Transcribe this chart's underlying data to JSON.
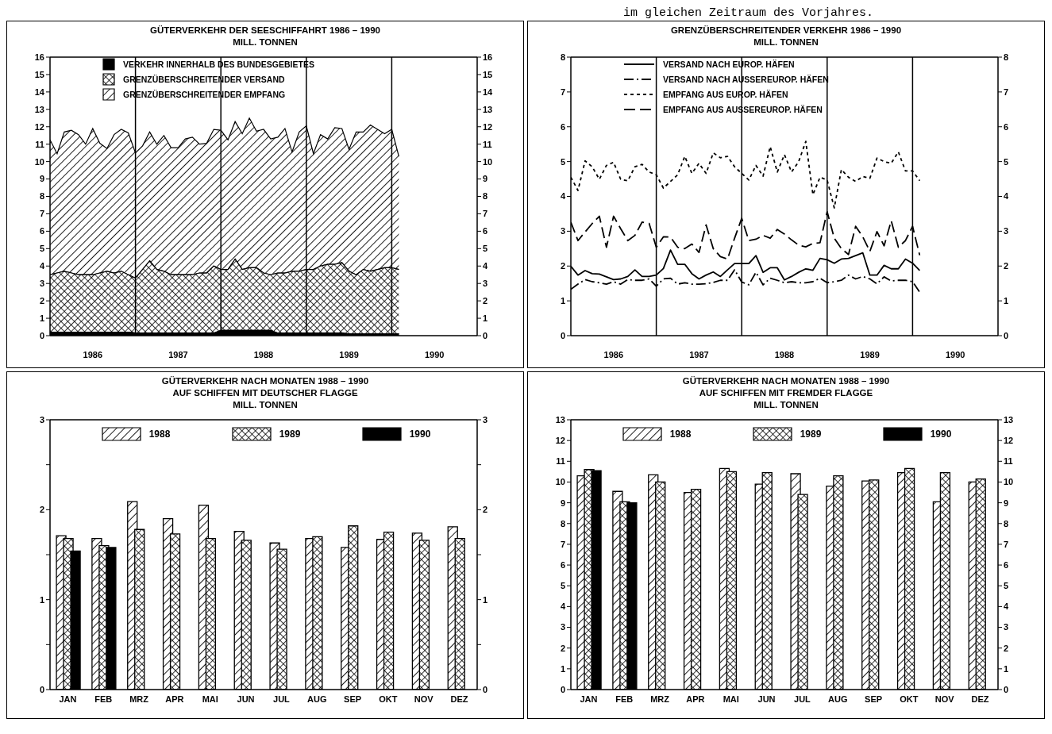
{
  "chart_data": [
    {
      "type": "area",
      "stacked": true,
      "title": "GÜTERVERKEHR DER SEESCHIFFAHRT 1986 – 1990",
      "subtitle": "MILL. TONNEN",
      "x": [
        "1986-01",
        "1986-02",
        "1986-03",
        "1986-04",
        "1986-05",
        "1986-06",
        "1986-07",
        "1986-08",
        "1986-09",
        "1986-10",
        "1986-11",
        "1986-12",
        "1987-01",
        "1987-02",
        "1987-03",
        "1987-04",
        "1987-05",
        "1987-06",
        "1987-07",
        "1987-08",
        "1987-09",
        "1987-10",
        "1987-11",
        "1987-12",
        "1988-01",
        "1988-02",
        "1988-03",
        "1988-04",
        "1988-05",
        "1988-06",
        "1988-07",
        "1988-08",
        "1988-09",
        "1988-10",
        "1988-11",
        "1988-12",
        "1989-01",
        "1989-02",
        "1989-03",
        "1989-04",
        "1989-05",
        "1989-06",
        "1989-07",
        "1989-08",
        "1989-09",
        "1989-10",
        "1989-11",
        "1989-12",
        "1990-01",
        "1990-02"
      ],
      "series": [
        {
          "name": "VERKEHR INNERHALB DES BUNDESGEBIETES",
          "color": "#000000",
          "values": [
            0.2,
            0.2,
            0.2,
            0.2,
            0.2,
            0.2,
            0.2,
            0.2,
            0.2,
            0.2,
            0.2,
            0.2,
            0.15,
            0.15,
            0.15,
            0.15,
            0.15,
            0.15,
            0.15,
            0.15,
            0.15,
            0.15,
            0.15,
            0.15,
            0.3,
            0.3,
            0.3,
            0.3,
            0.3,
            0.3,
            0.3,
            0.3,
            0.15,
            0.15,
            0.15,
            0.15,
            0.15,
            0.15,
            0.15,
            0.15,
            0.15,
            0.15,
            0.1,
            0.1,
            0.1,
            0.1,
            0.1,
            0.1,
            0.1,
            0.1
          ]
        },
        {
          "name": "GRENZÜBERSCHREITENDER VERSAND",
          "color": "#000000",
          "values": [
            3.3,
            3.4,
            3.5,
            3.4,
            3.3,
            3.3,
            3.3,
            3.4,
            3.5,
            3.4,
            3.5,
            3.3,
            3.15,
            3.65,
            4.15,
            3.65,
            3.55,
            3.35,
            3.35,
            3.35,
            3.35,
            3.45,
            3.45,
            3.85,
            3.5,
            3.5,
            4.1,
            3.5,
            3.6,
            3.6,
            3.3,
            3.2,
            3.45,
            3.45,
            3.55,
            3.55,
            3.65,
            3.65,
            3.85,
            3.95,
            3.95,
            4.05,
            3.6,
            3.4,
            3.7,
            3.6,
            3.7,
            3.8,
            3.8,
            3.7
          ]
        },
        {
          "name": "GRENZÜBERSCHREITENDER EMPFANG",
          "color": "#000000",
          "values": [
            7.75,
            6.85,
            8.0,
            8.2,
            8.05,
            7.5,
            8.4,
            7.45,
            7.05,
            7.95,
            8.15,
            8.15,
            7.2,
            7.1,
            7.4,
            7.2,
            7.8,
            7.3,
            7.3,
            7.8,
            7.9,
            7.4,
            7.45,
            7.85,
            8.0,
            7.45,
            7.9,
            7.8,
            8.6,
            7.85,
            8.25,
            7.8,
            7.8,
            8.3,
            6.85,
            8.0,
            8.25,
            6.65,
            7.55,
            7.2,
            7.85,
            7.7,
            7.0,
            8.2,
            7.9,
            8.4,
            8.05,
            7.7,
            7.95,
            6.5
          ]
        }
      ],
      "xlim": [
        "1986-01",
        "1991-01"
      ],
      "xticks": [
        {
          "value": "1986-07",
          "label": "1986"
        },
        {
          "value": "1987-07",
          "label": "1987"
        },
        {
          "value": "1988-07",
          "label": "1988"
        },
        {
          "value": "1989-07",
          "label": "1989"
        },
        {
          "value": "1990-07",
          "label": "1990"
        }
      ],
      "ylim": [
        0,
        16
      ],
      "yticks": [
        0,
        1,
        2,
        3,
        4,
        5,
        6,
        7,
        8,
        9,
        10,
        11,
        12,
        13,
        14,
        15,
        16
      ],
      "y2lim": [
        0,
        16
      ],
      "y2ticks": [
        0,
        1,
        2,
        3,
        4,
        5,
        6,
        7,
        8,
        9,
        10,
        11,
        12,
        13,
        14,
        15,
        16
      ],
      "ref_lines": [
        {
          "axis": "x",
          "value": "1987-01"
        },
        {
          "axis": "x",
          "value": "1988-01"
        },
        {
          "axis": "x",
          "value": "1989-01"
        },
        {
          "axis": "x",
          "value": "1990-01"
        }
      ],
      "legend": "top left",
      "grid": false
    },
    {
      "type": "line",
      "title": "GRENZÜBERSCHREITENDER VERKEHR 1986 – 1990",
      "subtitle": "MILL. TONNEN",
      "annotations": [
        "im gleichen Zeitraum des Vorjahres."
      ],
      "x": [
        "1986-01",
        "1986-02",
        "1986-03",
        "1986-04",
        "1986-05",
        "1986-06",
        "1986-07",
        "1986-08",
        "1986-09",
        "1986-10",
        "1986-11",
        "1986-12",
        "1987-01",
        "1987-02",
        "1987-03",
        "1987-04",
        "1987-05",
        "1987-06",
        "1987-07",
        "1987-08",
        "1987-09",
        "1987-10",
        "1987-11",
        "1987-12",
        "1988-01",
        "1988-02",
        "1988-03",
        "1988-04",
        "1988-05",
        "1988-06",
        "1988-07",
        "1988-08",
        "1988-09",
        "1988-10",
        "1988-11",
        "1988-12",
        "1989-01",
        "1989-02",
        "1989-03",
        "1989-04",
        "1989-05",
        "1989-06",
        "1989-07",
        "1989-08",
        "1989-09",
        "1989-10",
        "1989-11",
        "1989-12",
        "1990-01",
        "1990-02"
      ],
      "series": [
        {
          "name": "VERSAND NACH EUROP. HÄFEN",
          "color": "#000000",
          "line_style": "solid",
          "values": [
            1.99,
            1.74,
            1.87,
            1.78,
            1.77,
            1.69,
            1.61,
            1.63,
            1.7,
            1.89,
            1.7,
            1.7,
            1.74,
            1.93,
            2.46,
            2.05,
            2.05,
            1.78,
            1.63,
            1.74,
            1.83,
            1.7,
            1.89,
            2.07,
            2.07,
            2.07,
            2.3,
            1.82,
            1.95,
            1.95,
            1.6,
            1.7,
            1.82,
            1.92,
            1.88,
            2.22,
            2.18,
            2.08,
            2.2,
            2.22,
            2.3,
            2.38,
            1.74,
            1.74,
            2.02,
            1.92,
            1.92,
            2.2,
            2.08,
            1.87
          ]
        },
        {
          "name": "VERSAND NACH AUSSEREUROP. HÄFEN",
          "color": "#000000",
          "line_style": "dashdot",
          "values": [
            1.33,
            1.48,
            1.61,
            1.55,
            1.52,
            1.48,
            1.55,
            1.48,
            1.61,
            1.59,
            1.59,
            1.63,
            1.42,
            1.63,
            1.65,
            1.48,
            1.52,
            1.48,
            1.48,
            1.49,
            1.53,
            1.59,
            1.59,
            1.89,
            1.54,
            1.46,
            1.82,
            1.46,
            1.65,
            1.59,
            1.52,
            1.55,
            1.52,
            1.52,
            1.55,
            1.65,
            1.52,
            1.55,
            1.59,
            1.74,
            1.63,
            1.7,
            1.63,
            1.49,
            1.69,
            1.57,
            1.59,
            1.59,
            1.55,
            1.25
          ]
        },
        {
          "name": "EMPFANG AUS EUROP. HÄFEN",
          "color": "#000000",
          "line_style": "dotted",
          "values": [
            4.55,
            4.17,
            5.02,
            4.85,
            4.49,
            4.89,
            4.98,
            4.49,
            4.45,
            4.85,
            4.92,
            4.7,
            4.62,
            4.24,
            4.43,
            4.62,
            5.15,
            4.66,
            4.95,
            4.66,
            5.25,
            5.11,
            5.15,
            4.85,
            4.66,
            4.47,
            4.89,
            4.58,
            5.43,
            4.7,
            5.2,
            4.7,
            5.0,
            5.58,
            4.05,
            4.55,
            4.47,
            3.67,
            4.77,
            4.55,
            4.43,
            4.57,
            4.52,
            5.1,
            5.0,
            4.95,
            5.28,
            4.73,
            4.73,
            4.45
          ]
        },
        {
          "name": "EMPFANG AUS AUSSEREUROP. HÄFEN",
          "color": "#000000",
          "line_style": "dashed",
          "values": [
            3.26,
            2.73,
            2.98,
            3.22,
            3.43,
            2.54,
            3.43,
            3.07,
            2.73,
            2.88,
            3.26,
            3.22,
            2.54,
            2.84,
            2.83,
            2.54,
            2.5,
            2.63,
            2.39,
            3.18,
            2.5,
            2.27,
            2.2,
            2.8,
            3.37,
            2.73,
            2.77,
            2.88,
            2.8,
            3.05,
            2.92,
            2.75,
            2.6,
            2.55,
            2.65,
            2.67,
            3.56,
            2.8,
            2.5,
            2.33,
            3.14,
            2.84,
            2.42,
            2.99,
            2.58,
            3.3,
            2.54,
            2.73,
            3.14,
            2.31
          ]
        }
      ],
      "xlim": [
        "1986-01",
        "1991-01"
      ],
      "xticks": [
        {
          "value": "1986-07",
          "label": "1986"
        },
        {
          "value": "1987-07",
          "label": "1987"
        },
        {
          "value": "1988-07",
          "label": "1988"
        },
        {
          "value": "1989-07",
          "label": "1989"
        },
        {
          "value": "1990-07",
          "label": "1990"
        }
      ],
      "ylim": [
        0,
        8
      ],
      "yticks": [
        0,
        1,
        2,
        3,
        4,
        5,
        6,
        7,
        8
      ],
      "y2lim": [
        0,
        8
      ],
      "y2ticks": [
        0,
        1,
        2,
        3,
        4,
        5,
        6,
        7,
        8
      ],
      "ref_lines": [
        {
          "axis": "x",
          "value": "1987-01"
        },
        {
          "axis": "x",
          "value": "1988-01"
        },
        {
          "axis": "x",
          "value": "1989-01"
        },
        {
          "axis": "x",
          "value": "1990-01"
        }
      ],
      "legend": "top left",
      "grid": false
    },
    {
      "type": "bar",
      "title": "GÜTERVERKEHR NACH MONATEN 1988 – 1990",
      "subtitle": "AUF SCHIFFEN MIT DEUTSCHER FLAGGE\nMILL. TONNEN",
      "categories": [
        "JAN",
        "FEB",
        "MRZ",
        "APR",
        "MAI",
        "JUN",
        "JUL",
        "AUG",
        "SEP",
        "OKT",
        "NOV",
        "DEZ"
      ],
      "series": [
        {
          "name": "1988",
          "color": "#000000",
          "values": [
            1.71,
            1.68,
            2.09,
            1.9,
            2.05,
            1.76,
            1.63,
            1.68,
            1.58,
            1.67,
            1.74,
            1.81
          ]
        },
        {
          "name": "1989",
          "color": "#000000",
          "values": [
            1.68,
            1.6,
            1.78,
            1.73,
            1.68,
            1.66,
            1.56,
            1.7,
            1.82,
            1.75,
            1.66,
            1.68
          ]
        },
        {
          "name": "1990",
          "color": "#000000",
          "values": [
            1.54,
            1.58,
            null,
            null,
            null,
            null,
            null,
            null,
            null,
            null,
            null,
            null
          ]
        }
      ],
      "ylim": [
        0,
        3
      ],
      "yticks": [
        0,
        {
          "value": 0.5,
          "label": null
        },
        1,
        {
          "value": 1.5,
          "label": null
        },
        2,
        {
          "value": 2.5,
          "label": null
        },
        3
      ],
      "y2lim": [
        0,
        3
      ],
      "y2ticks": [
        0,
        {
          "value": 0.5,
          "label": null
        },
        1,
        {
          "value": 1.5,
          "label": null
        },
        2,
        {
          "value": 2.5,
          "label": null
        },
        3
      ],
      "legend": "top",
      "grid": false
    },
    {
      "type": "bar",
      "title": "GÜTERVERKEHR NACH MONATEN 1988 – 1990",
      "subtitle": "AUF SCHIFFEN MIT FREMDER FLAGGE\nMILL. TONNEN",
      "categories": [
        "JAN",
        "FEB",
        "MRZ",
        "APR",
        "MAI",
        "JUN",
        "JUL",
        "AUG",
        "SEP",
        "OKT",
        "NOV",
        "DEZ"
      ],
      "series": [
        {
          "name": "1988",
          "color": "#000000",
          "values": [
            10.3,
            9.55,
            10.35,
            9.5,
            10.65,
            9.9,
            10.4,
            9.8,
            10.05,
            10.45,
            9.05,
            10.0
          ]
        },
        {
          "name": "1989",
          "color": "#000000",
          "values": [
            10.6,
            9.05,
            10.0,
            9.65,
            10.5,
            10.45,
            9.4,
            10.3,
            10.1,
            10.65,
            10.45,
            10.15
          ]
        },
        {
          "name": "1990",
          "color": "#000000",
          "values": [
            10.55,
            9.0,
            null,
            null,
            null,
            null,
            null,
            null,
            null,
            null,
            null,
            null
          ]
        }
      ],
      "ylim": [
        0,
        13
      ],
      "yticks": [
        0,
        1,
        2,
        3,
        4,
        5,
        6,
        7,
        8,
        9,
        10,
        11,
        12,
        13
      ],
      "y2lim": [
        0,
        13
      ],
      "y2ticks": [
        0,
        1,
        2,
        3,
        4,
        5,
        6,
        7,
        8,
        9,
        10,
        11,
        12,
        13
      ],
      "legend": "top",
      "grid": false
    }
  ]
}
